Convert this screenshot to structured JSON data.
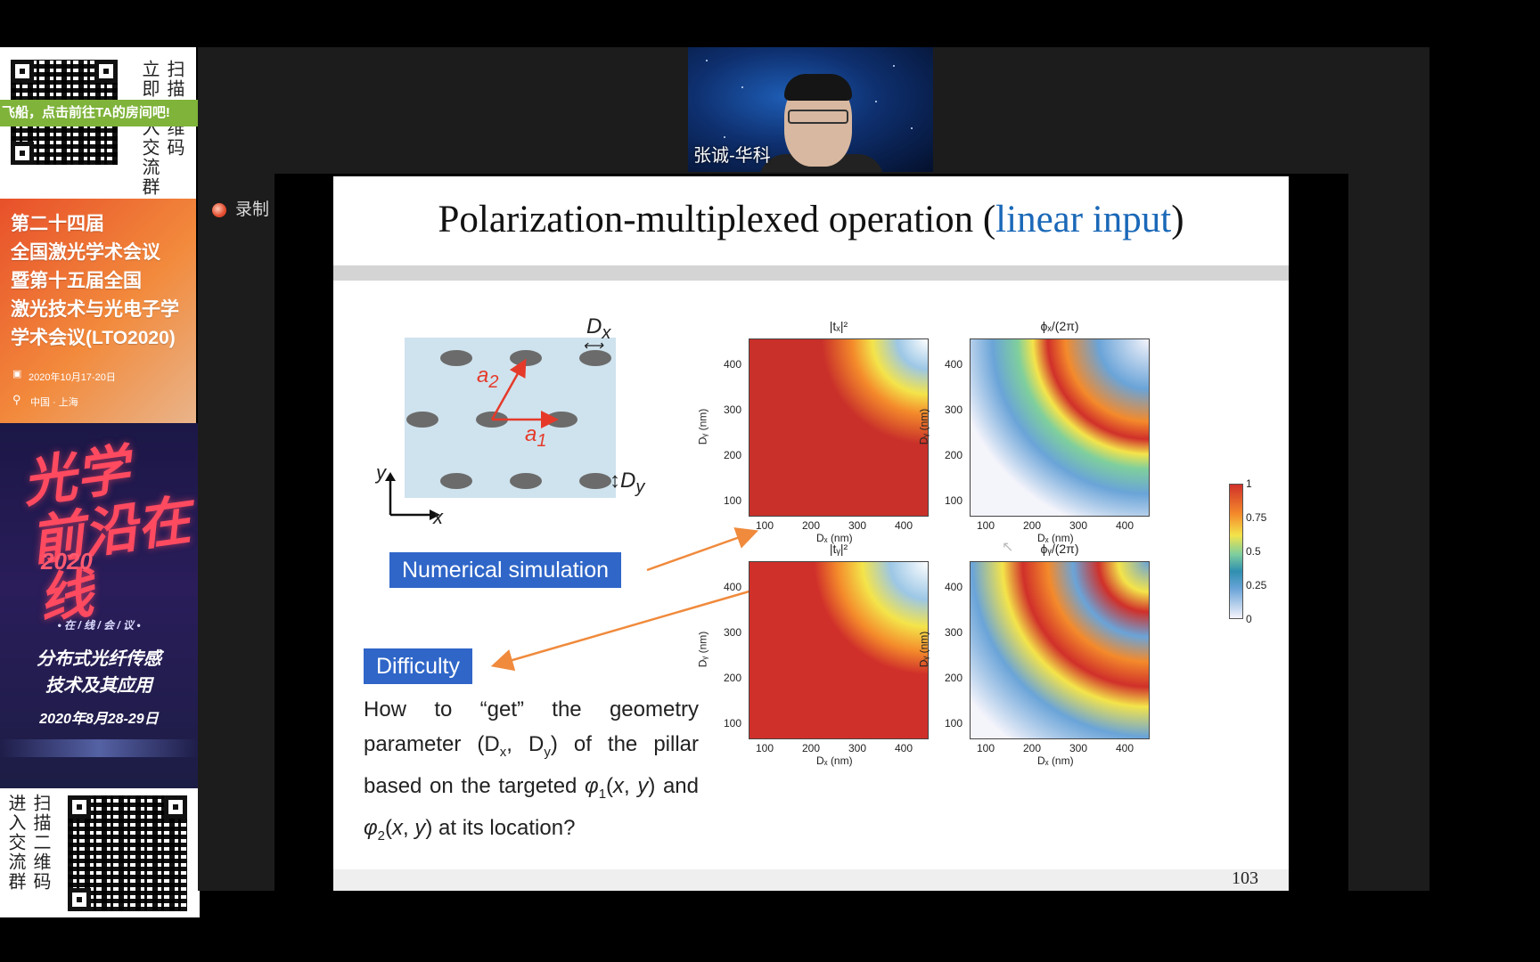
{
  "left_panel": {
    "qr_caption_top": [
      "扫描",
      "立即"
    ],
    "qr_caption_top_full": [
      "扫描二维码",
      "立即进入交流群"
    ],
    "green_banner": "飞船，点击前往TA的房间吧!",
    "conference": {
      "lines": [
        "第二十四届",
        "全国激光学术会议",
        "暨第十五届全国",
        "激光技术与光电子学",
        "学术会议(LTO2020)"
      ],
      "date": "2020年10月17-20日",
      "location": "中国 · 上海"
    },
    "promo": {
      "calligraphy": "光学前沿在线",
      "year": "2020",
      "online_tag": "• 在 / 线 / 会 / 议 •",
      "topic_line1": "分布式光纤传感",
      "topic_line2": "技术及其应用",
      "date": "2020年8月28-29日"
    },
    "qr_caption_bottom": [
      "扫描二维码",
      "进入交流群"
    ]
  },
  "webcam": {
    "name": "张诚-华科"
  },
  "record": {
    "label": "录制"
  },
  "slide": {
    "title_main": "Polarization-multiplexed operation (",
    "title_blue": "linear input",
    "title_end": ")",
    "diagram_labels": {
      "dx": "D",
      "dx_sub": "x",
      "dy": "D",
      "dy_sub": "y",
      "a1": "a",
      "a1_sub": "1",
      "a2": "a",
      "a2_sub": "2",
      "axis_x": "x",
      "axis_y": "y"
    },
    "box_numerical": "Numerical simulation",
    "box_difficulty": "Difficulty",
    "paragraph_html": "How to “get” the geometry parameter (D<sub>x</sub>, D<sub>y</sub>) of the pillar based on the targeted <i>φ</i><sub>1</sub>(<i>x</i>, <i>y</i>) and <i>φ</i><sub>2</sub>(<i>x</i>, <i>y</i>) at its location?",
    "plots": [
      {
        "title": "|tₓ|²"
      },
      {
        "title": "ϕₓ/(2π)"
      },
      {
        "title": "|tᵧ|²"
      },
      {
        "title": "ϕᵧ/(2π)"
      }
    ],
    "x_ticks": [
      "100",
      "200",
      "300",
      "400"
    ],
    "y_ticks": [
      "400",
      "300",
      "200",
      "100"
    ],
    "xlabel": "Dₓ (nm)",
    "ylabel": "Dᵧ (nm)",
    "colorbar_ticks": [
      "1",
      "0.75",
      "0.5",
      "0.25",
      "0"
    ],
    "page_number": "103"
  }
}
